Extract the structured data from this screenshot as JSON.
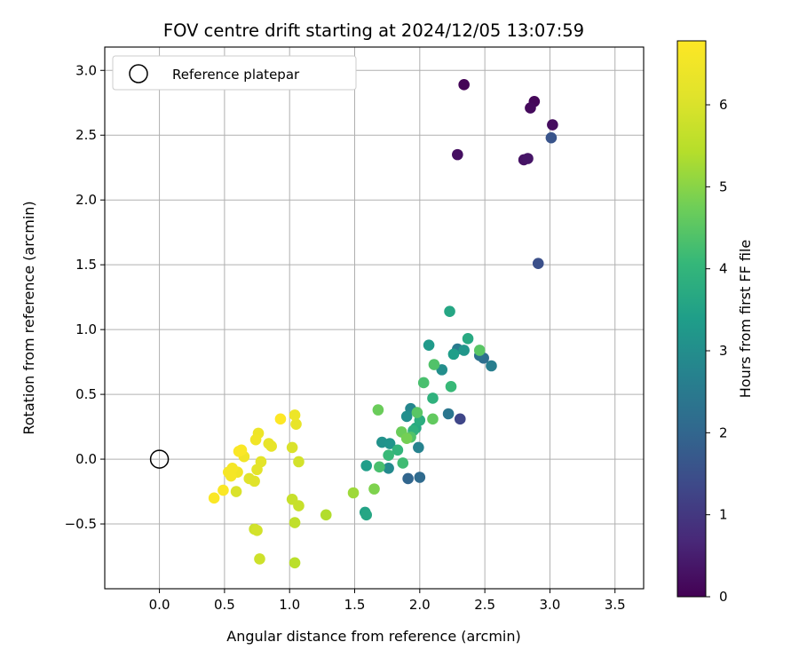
{
  "chart_data": {
    "type": "scatter",
    "title": "FOV centre drift starting at 2024/12/05 13:07:59",
    "xlabel": "Angular distance from reference (arcmin)",
    "ylabel": "Rotation from reference (arcmin)",
    "xlim": [
      -0.42,
      3.72
    ],
    "ylim": [
      -1.0,
      3.18
    ],
    "xticks": [
      0.0,
      0.5,
      1.0,
      1.5,
      2.0,
      2.5,
      3.0,
      3.5
    ],
    "xtick_labels": [
      "0.0",
      "0.5",
      "1.0",
      "1.5",
      "2.0",
      "2.5",
      "3.0",
      "3.5"
    ],
    "yticks": [
      -0.5,
      0.0,
      0.5,
      1.0,
      1.5,
      2.0,
      2.5,
      3.0
    ],
    "ytick_labels": [
      "−0.5",
      "0.0",
      "0.5",
      "1.0",
      "1.5",
      "2.0",
      "2.5",
      "3.0"
    ],
    "grid": true,
    "legend": {
      "placement": "upper-left",
      "label": "Reference platepar",
      "marker": "open-circle"
    },
    "reference_point": {
      "x": 0.0,
      "y": 0.0
    },
    "colorbar": {
      "label": "Hours from first FF file",
      "colormap": "viridis",
      "range": [
        0,
        6.78
      ],
      "ticks": [
        0,
        1,
        2,
        3,
        4,
        5,
        6
      ],
      "tick_labels": [
        "0",
        "1",
        "2",
        "3",
        "4",
        "5",
        "6"
      ]
    },
    "points": [
      {
        "x": 2.34,
        "y": 2.89,
        "h": 0.05
      },
      {
        "x": 2.88,
        "y": 2.76,
        "h": 0.1
      },
      {
        "x": 2.85,
        "y": 2.71,
        "h": 0.15
      },
      {
        "x": 3.02,
        "y": 2.58,
        "h": 0.2
      },
      {
        "x": 2.29,
        "y": 2.35,
        "h": 0.25
      },
      {
        "x": 2.8,
        "y": 2.31,
        "h": 0.3
      },
      {
        "x": 2.83,
        "y": 2.32,
        "h": 0.35
      },
      {
        "x": 3.01,
        "y": 2.48,
        "h": 1.6
      },
      {
        "x": 2.91,
        "y": 1.51,
        "h": 1.5
      },
      {
        "x": 2.31,
        "y": 0.31,
        "h": 1.3
      },
      {
        "x": 1.91,
        "y": -0.15,
        "h": 2.0
      },
      {
        "x": 2.0,
        "y": -0.14,
        "h": 2.1
      },
      {
        "x": 2.49,
        "y": 0.78,
        "h": 2.2
      },
      {
        "x": 2.22,
        "y": 0.35,
        "h": 2.4
      },
      {
        "x": 2.55,
        "y": 0.72,
        "h": 2.6
      },
      {
        "x": 2.46,
        "y": 0.8,
        "h": 2.3
      },
      {
        "x": 2.29,
        "y": 0.85,
        "h": 2.5
      },
      {
        "x": 1.99,
        "y": 0.09,
        "h": 2.7
      },
      {
        "x": 1.93,
        "y": 0.39,
        "h": 2.8
      },
      {
        "x": 1.76,
        "y": -0.07,
        "h": 2.9
      },
      {
        "x": 1.9,
        "y": 0.33,
        "h": 3.0
      },
      {
        "x": 2.17,
        "y": 0.69,
        "h": 3.0
      },
      {
        "x": 1.71,
        "y": 0.13,
        "h": 3.1
      },
      {
        "x": 1.77,
        "y": 0.12,
        "h": 3.15
      },
      {
        "x": 2.34,
        "y": 0.84,
        "h": 3.2
      },
      {
        "x": 2.07,
        "y": 0.88,
        "h": 3.3
      },
      {
        "x": 2.26,
        "y": 0.81,
        "h": 3.4
      },
      {
        "x": 1.59,
        "y": -0.05,
        "h": 3.4
      },
      {
        "x": 1.58,
        "y": -0.41,
        "h": 3.5
      },
      {
        "x": 1.59,
        "y": -0.43,
        "h": 3.6
      },
      {
        "x": 2.23,
        "y": 1.14,
        "h": 3.6
      },
      {
        "x": 2.37,
        "y": 0.93,
        "h": 3.7
      },
      {
        "x": 1.97,
        "y": 0.24,
        "h": 3.7
      },
      {
        "x": 2.0,
        "y": 0.3,
        "h": 3.8
      },
      {
        "x": 1.95,
        "y": 0.22,
        "h": 3.9
      },
      {
        "x": 2.1,
        "y": 0.47,
        "h": 3.9
      },
      {
        "x": 1.83,
        "y": 0.07,
        "h": 4.0
      },
      {
        "x": 1.76,
        "y": 0.03,
        "h": 4.1
      },
      {
        "x": 2.24,
        "y": 0.56,
        "h": 4.1
      },
      {
        "x": 1.87,
        "y": -0.03,
        "h": 4.2
      },
      {
        "x": 1.69,
        "y": -0.06,
        "h": 4.3
      },
      {
        "x": 2.03,
        "y": 0.59,
        "h": 4.3
      },
      {
        "x": 2.11,
        "y": 0.73,
        "h": 4.4
      },
      {
        "x": 1.93,
        "y": 0.17,
        "h": 4.4
      },
      {
        "x": 1.98,
        "y": 0.36,
        "h": 4.5
      },
      {
        "x": 2.46,
        "y": 0.84,
        "h": 4.5
      },
      {
        "x": 2.1,
        "y": 0.31,
        "h": 4.6
      },
      {
        "x": 1.68,
        "y": 0.38,
        "h": 4.7
      },
      {
        "x": 1.86,
        "y": 0.21,
        "h": 4.7
      },
      {
        "x": 1.9,
        "y": 0.16,
        "h": 4.8
      },
      {
        "x": 1.65,
        "y": -0.23,
        "h": 4.9
      },
      {
        "x": 1.49,
        "y": -0.26,
        "h": 5.2
      },
      {
        "x": 1.28,
        "y": -0.43,
        "h": 5.4
      },
      {
        "x": 1.04,
        "y": -0.8,
        "h": 5.5
      },
      {
        "x": 1.04,
        "y": -0.49,
        "h": 5.6
      },
      {
        "x": 1.07,
        "y": -0.36,
        "h": 5.7
      },
      {
        "x": 1.02,
        "y": -0.31,
        "h": 5.7
      },
      {
        "x": 0.77,
        "y": -0.77,
        "h": 5.8
      },
      {
        "x": 0.73,
        "y": -0.54,
        "h": 5.8
      },
      {
        "x": 0.75,
        "y": -0.55,
        "h": 5.9
      },
      {
        "x": 1.07,
        "y": -0.02,
        "h": 5.9
      },
      {
        "x": 1.02,
        "y": 0.09,
        "h": 6.0
      },
      {
        "x": 0.59,
        "y": -0.25,
        "h": 6.0
      },
      {
        "x": 0.73,
        "y": -0.17,
        "h": 6.1
      },
      {
        "x": 0.69,
        "y": -0.15,
        "h": 6.1
      },
      {
        "x": 0.75,
        "y": -0.08,
        "h": 6.2
      },
      {
        "x": 0.78,
        "y": -0.02,
        "h": 6.2
      },
      {
        "x": 0.84,
        "y": 0.12,
        "h": 6.3
      },
      {
        "x": 0.86,
        "y": 0.1,
        "h": 6.3
      },
      {
        "x": 1.05,
        "y": 0.27,
        "h": 6.3
      },
      {
        "x": 1.04,
        "y": 0.34,
        "h": 6.4
      },
      {
        "x": 0.76,
        "y": 0.2,
        "h": 6.4
      },
      {
        "x": 0.74,
        "y": 0.15,
        "h": 6.5
      },
      {
        "x": 0.65,
        "y": 0.02,
        "h": 6.5
      },
      {
        "x": 0.6,
        "y": -0.1,
        "h": 6.5
      },
      {
        "x": 0.56,
        "y": -0.07,
        "h": 6.6
      },
      {
        "x": 0.53,
        "y": -0.1,
        "h": 6.6
      },
      {
        "x": 0.55,
        "y": -0.13,
        "h": 6.6
      },
      {
        "x": 0.49,
        "y": -0.24,
        "h": 6.7
      },
      {
        "x": 0.42,
        "y": -0.3,
        "h": 6.7
      },
      {
        "x": 0.61,
        "y": 0.06,
        "h": 6.7
      },
      {
        "x": 0.63,
        "y": 0.07,
        "h": 6.7
      },
      {
        "x": 0.93,
        "y": 0.31,
        "h": 6.8
      }
    ]
  }
}
